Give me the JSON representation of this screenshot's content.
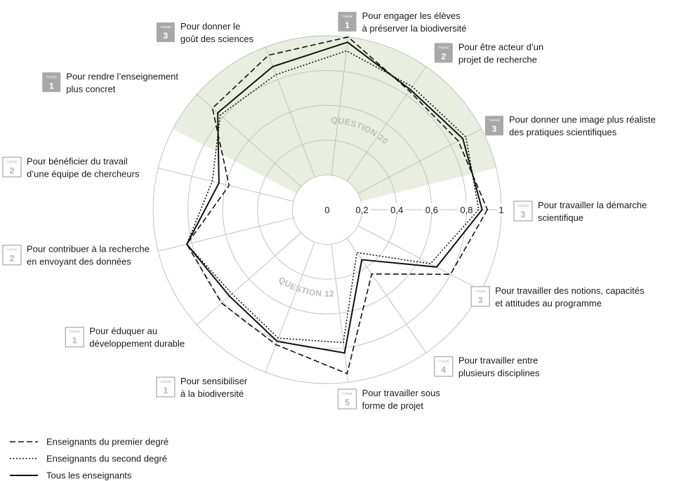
{
  "chart_data": {
    "type": "radar",
    "rmax": 1,
    "ticks": [
      "0",
      "0,2",
      "0,4",
      "0,6",
      "0,8",
      "1"
    ],
    "zone_labels": [
      "QUESTION 20",
      "QUESTION 12"
    ],
    "badge_word": "THÈME",
    "axes": [
      {
        "label": [
          "Pour travailler la démarche",
          "scientifique"
        ],
        "theme": "3",
        "badge": "outline"
      },
      {
        "label": [
          "Pour travailler des notions, capacités",
          "et attitudes au programme"
        ],
        "theme": "3",
        "badge": "outline"
      },
      {
        "label": [
          "Pour travailler entre",
          "plusieurs disciplines"
        ],
        "theme": "4",
        "badge": "outline"
      },
      {
        "label": [
          "Pour travailler sous",
          "forme de projet"
        ],
        "theme": "5",
        "badge": "outline"
      },
      {
        "label": [
          "Pour sensibiliser",
          "à la biodiversité"
        ],
        "theme": "1",
        "badge": "outline"
      },
      {
        "label": [
          "Pour éduquer au",
          "développement durable"
        ],
        "theme": "1",
        "badge": "outline"
      },
      {
        "label": [
          "Pour contribuer à la recherche",
          "en envoyant des données"
        ],
        "theme": "2",
        "badge": "outline"
      },
      {
        "label": [
          "Pour bénéficier du travail",
          "d’une équipe de chercheurs"
        ],
        "theme": "2",
        "badge": "outline"
      },
      {
        "label": [
          "Pour rendre l’enseignement",
          "plus concret"
        ],
        "theme": "1",
        "badge": "filled"
      },
      {
        "label": [
          "Pour donner le",
          "goût des sciences"
        ],
        "theme": "3",
        "badge": "filled"
      },
      {
        "label": [
          "Pour engager les élèves",
          "à préserver la biodiversité"
        ],
        "theme": "1",
        "badge": "filled"
      },
      {
        "label": [
          "Pour être acteur d’un",
          "projet de recherche"
        ],
        "theme": "2",
        "badge": "filled"
      },
      {
        "label": [
          "Pour donner une image plus réaliste",
          "des pratiques scientifiques"
        ],
        "theme": "3",
        "badge": "filled"
      }
    ],
    "series": [
      {
        "name": "Enseignants du premier degré",
        "style": "dashed",
        "values": [
          0.92,
          0.8,
          0.45,
          0.95,
          0.83,
          0.81,
          0.83,
          0.58,
          0.88,
          0.95,
          1.0,
          0.83,
          0.85
        ]
      },
      {
        "name": "Enseignants du second degré",
        "style": "dotted",
        "values": [
          0.87,
          0.67,
          0.3,
          0.77,
          0.79,
          0.73,
          0.83,
          0.68,
          0.82,
          0.83,
          0.92,
          0.86,
          0.9
        ]
      },
      {
        "name": "Tous les enseignants",
        "style": "solid",
        "values": [
          0.89,
          0.71,
          0.35,
          0.83,
          0.81,
          0.75,
          0.83,
          0.64,
          0.84,
          0.88,
          0.97,
          0.84,
          0.88
        ]
      }
    ],
    "colors": {
      "grid": "#bdbdbd",
      "highlight": "#eaeee0",
      "badge_filled": "#a8a8a8",
      "badge_outline": "#b3b3b3",
      "zone_text": "#bdbdbd"
    }
  }
}
